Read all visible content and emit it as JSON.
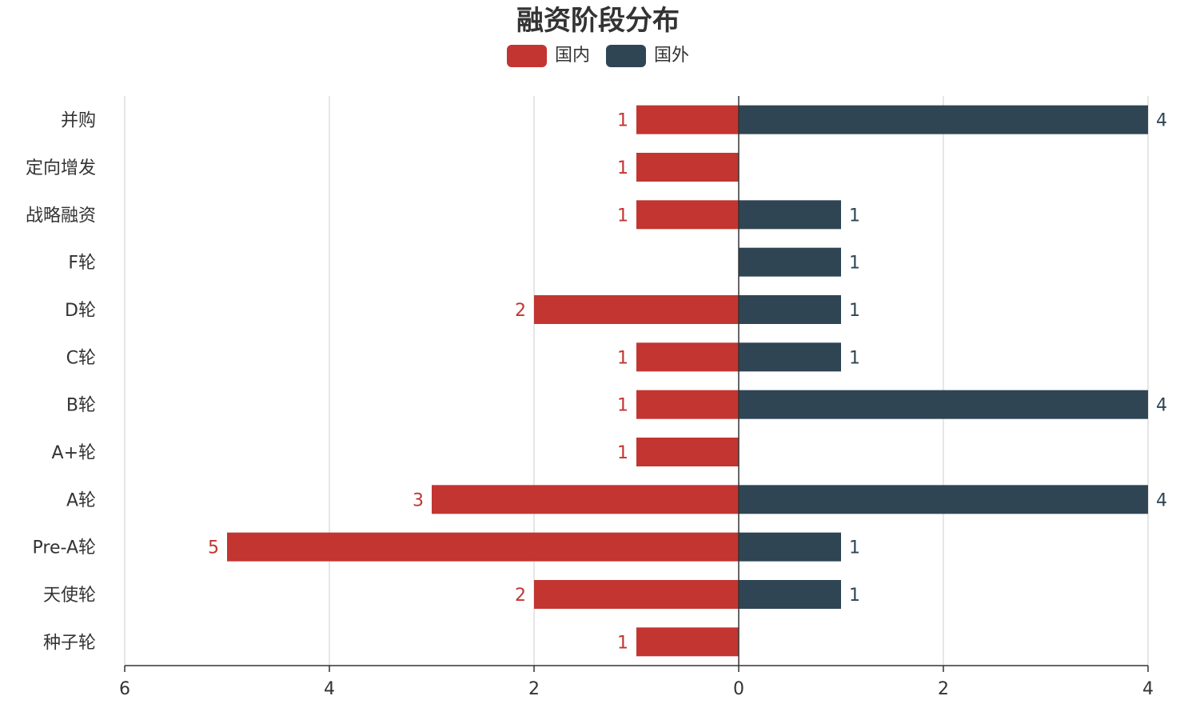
{
  "chart_data": {
    "type": "bar",
    "orientation": "horizontal",
    "layout": "diverging",
    "title": "融资阶段分布",
    "categories": [
      "种子轮",
      "天使轮",
      "Pre-A轮",
      "A轮",
      "A+轮",
      "B轮",
      "C轮",
      "D轮",
      "F轮",
      "战略融资",
      "定向增发",
      "并购"
    ],
    "series": [
      {
        "name": "国内",
        "color": "#c23531",
        "direction": "left",
        "values": [
          1,
          2,
          5,
          3,
          1,
          1,
          1,
          2,
          null,
          1,
          1,
          1
        ]
      },
      {
        "name": "国外",
        "color": "#2f4554",
        "direction": "right",
        "values": [
          null,
          1,
          1,
          4,
          null,
          4,
          1,
          1,
          1,
          1,
          null,
          4
        ]
      }
    ],
    "xlim": [
      -6,
      4
    ],
    "x_ticks": [
      -6,
      -4,
      -2,
      0,
      2,
      4
    ],
    "x_tick_labels": [
      "6",
      "4",
      "2",
      "0",
      "2",
      "4"
    ],
    "grid": "vertical",
    "legend_position": "top-center",
    "data_labels": true
  }
}
